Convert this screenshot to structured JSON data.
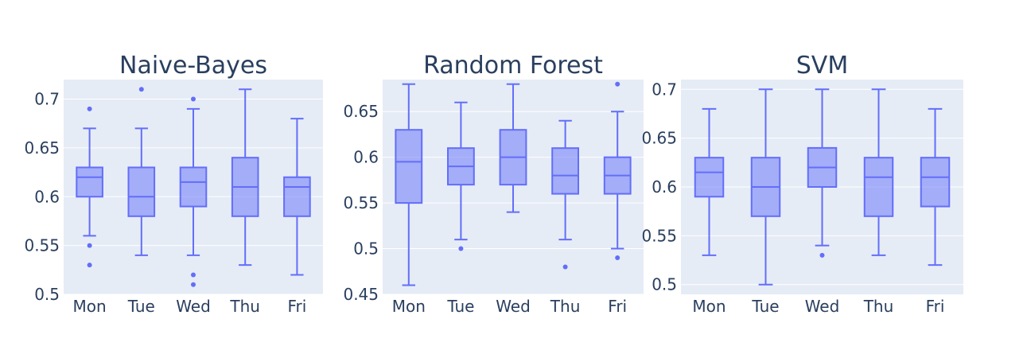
{
  "chart_data": [
    {
      "type": "box",
      "title": "Naive-Bayes",
      "categories": [
        "Mon",
        "Tue",
        "Wed",
        "Thu",
        "Fri"
      ],
      "ylim": [
        0.5,
        0.72
      ],
      "yticks": [
        0.5,
        0.55,
        0.6,
        0.65,
        0.7
      ],
      "ytick_labels": [
        "0.5",
        "0.55",
        "0.6",
        "0.65",
        "0.7"
      ],
      "boxes": [
        {
          "q1": 0.6,
          "median": 0.62,
          "q3": 0.63,
          "low": 0.56,
          "high": 0.67,
          "outliers": [
            0.69,
            0.55,
            0.53
          ]
        },
        {
          "q1": 0.58,
          "median": 0.6,
          "q3": 0.63,
          "low": 0.54,
          "high": 0.67,
          "outliers": [
            0.71
          ]
        },
        {
          "q1": 0.59,
          "median": 0.615,
          "q3": 0.63,
          "low": 0.54,
          "high": 0.69,
          "outliers": [
            0.7,
            0.52,
            0.51
          ]
        },
        {
          "q1": 0.58,
          "median": 0.61,
          "q3": 0.64,
          "low": 0.53,
          "high": 0.71,
          "outliers": []
        },
        {
          "q1": 0.58,
          "median": 0.61,
          "q3": 0.62,
          "low": 0.52,
          "high": 0.68,
          "outliers": []
        }
      ]
    },
    {
      "type": "box",
      "title": "Random Forest",
      "categories": [
        "Mon",
        "Tue",
        "Wed",
        "Thu",
        "Fri"
      ],
      "ylim": [
        0.45,
        0.685
      ],
      "yticks": [
        0.45,
        0.5,
        0.55,
        0.6,
        0.65
      ],
      "ytick_labels": [
        "0.45",
        "0.5",
        "0.55",
        "0.6",
        "0.65"
      ],
      "boxes": [
        {
          "q1": 0.55,
          "median": 0.595,
          "q3": 0.63,
          "low": 0.46,
          "high": 0.68,
          "outliers": []
        },
        {
          "q1": 0.57,
          "median": 0.59,
          "q3": 0.61,
          "low": 0.51,
          "high": 0.66,
          "outliers": [
            0.5
          ]
        },
        {
          "q1": 0.57,
          "median": 0.6,
          "q3": 0.63,
          "low": 0.54,
          "high": 0.68,
          "outliers": []
        },
        {
          "q1": 0.56,
          "median": 0.58,
          "q3": 0.61,
          "low": 0.51,
          "high": 0.64,
          "outliers": [
            0.48
          ]
        },
        {
          "q1": 0.56,
          "median": 0.58,
          "q3": 0.6,
          "low": 0.5,
          "high": 0.65,
          "outliers": [
            0.68,
            0.49
          ]
        }
      ]
    },
    {
      "type": "box",
      "title": "SVM",
      "categories": [
        "Mon",
        "Tue",
        "Wed",
        "Thu",
        "Fri"
      ],
      "ylim": [
        0.49,
        0.71
      ],
      "yticks": [
        0.5,
        0.55,
        0.6,
        0.65,
        0.7
      ],
      "ytick_labels": [
        "0.5",
        "0.55",
        "0.6",
        "0.65",
        "0.7"
      ],
      "boxes": [
        {
          "q1": 0.59,
          "median": 0.615,
          "q3": 0.63,
          "low": 0.53,
          "high": 0.68,
          "outliers": []
        },
        {
          "q1": 0.57,
          "median": 0.6,
          "q3": 0.63,
          "low": 0.5,
          "high": 0.7,
          "outliers": []
        },
        {
          "q1": 0.6,
          "median": 0.62,
          "q3": 0.64,
          "low": 0.54,
          "high": 0.7,
          "outliers": [
            0.53
          ]
        },
        {
          "q1": 0.57,
          "median": 0.61,
          "q3": 0.63,
          "low": 0.53,
          "high": 0.7,
          "outliers": []
        },
        {
          "q1": 0.58,
          "median": 0.61,
          "q3": 0.63,
          "low": 0.52,
          "high": 0.68,
          "outliers": []
        }
      ]
    }
  ],
  "colors": {
    "box_line": "#636efa",
    "box_fill": "rgba(99,110,250,0.5)",
    "plot_bg": "#e5ecf6",
    "text": "#2a3f5f"
  }
}
